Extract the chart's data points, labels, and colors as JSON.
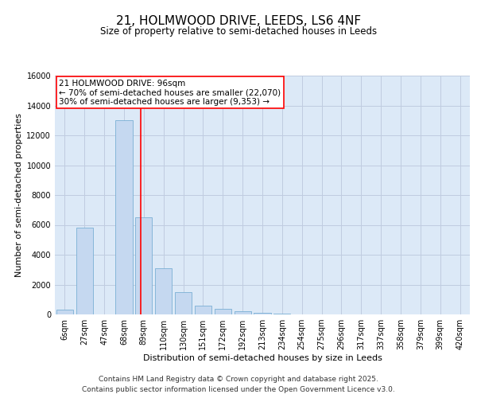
{
  "title_line1": "21, HOLMWOOD DRIVE, LEEDS, LS6 4NF",
  "title_line2": "Size of property relative to semi-detached houses in Leeds",
  "xlabel": "Distribution of semi-detached houses by size in Leeds",
  "ylabel": "Number of semi-detached properties",
  "categories": [
    "6sqm",
    "27sqm",
    "47sqm",
    "68sqm",
    "89sqm",
    "110sqm",
    "130sqm",
    "151sqm",
    "172sqm",
    "192sqm",
    "213sqm",
    "234sqm",
    "254sqm",
    "275sqm",
    "296sqm",
    "317sqm",
    "337sqm",
    "358sqm",
    "379sqm",
    "399sqm",
    "420sqm"
  ],
  "values": [
    300,
    5800,
    0,
    13000,
    6500,
    3100,
    1500,
    600,
    350,
    200,
    100,
    50,
    20,
    0,
    0,
    0,
    0,
    0,
    0,
    0,
    0
  ],
  "bar_color": "#c5d8f0",
  "bar_edge_color": "#7bafd4",
  "plot_bg_color": "#dce9f7",
  "red_line_index": 4,
  "red_line_label": "21 HOLMWOOD DRIVE: 96sqm",
  "annotation_smaller": "← 70% of semi-detached houses are smaller (22,070)",
  "annotation_larger": "30% of semi-detached houses are larger (9,353) →",
  "annotation_box_color": "white",
  "annotation_box_edge": "red",
  "ylim": [
    0,
    16000
  ],
  "yticks": [
    0,
    2000,
    4000,
    6000,
    8000,
    10000,
    12000,
    14000,
    16000
  ],
  "grid_color": "#c0cce0",
  "footer_line1": "Contains HM Land Registry data © Crown copyright and database right 2025.",
  "footer_line2": "Contains public sector information licensed under the Open Government Licence v3.0.",
  "title_fontsize": 11,
  "subtitle_fontsize": 8.5,
  "tick_fontsize": 7,
  "label_fontsize": 8,
  "footer_fontsize": 6.5,
  "ann_fontsize": 7.5
}
